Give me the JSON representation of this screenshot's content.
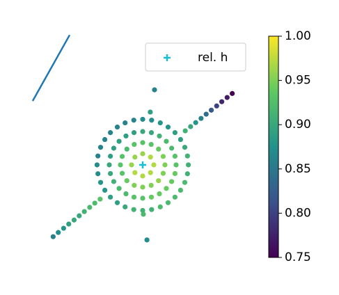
{
  "chart_data": {
    "type": "scatter",
    "xlim": [
      -5,
      5
    ],
    "ylim": [
      -4.35,
      5.85
    ],
    "colormap": "viridis",
    "clim": [
      0.75,
      1.0
    ],
    "cticks": [
      {
        "value": 1.0,
        "label": "1.00"
      },
      0.95,
      {
        "value": 0.9,
        "label": "0.90"
      },
      0.85,
      {
        "value": 0.8,
        "label": "0.80"
      },
      0.75
    ],
    "line": {
      "color": "#1f77b4",
      "x": [
        -4.94,
        -3.28
      ],
      "y": [
        2.875,
        5.84
      ]
    },
    "marker": {
      "name": "rel. h",
      "color": "#17becf",
      "x": 0,
      "y": 0
    },
    "legend": "upper right",
    "x": [
      0.5,
      0.35,
      0,
      -0.35,
      -0.5,
      -0.35,
      0,
      0.35,
      1,
      0.92,
      0.71,
      0.38,
      0,
      -0.38,
      -0.71,
      -0.92,
      -1,
      -0.92,
      -0.71,
      -0.38,
      0,
      0.38,
      0.71,
      0.92,
      1.5,
      1.45,
      1.3,
      1.06,
      0.75,
      0.39,
      0,
      -0.39,
      -0.75,
      -1.06,
      -1.3,
      -1.45,
      -1.5,
      -1.45,
      -1.3,
      -1.06,
      -0.75,
      -0.39,
      0,
      0.39,
      0.75,
      1.06,
      1.3,
      1.45,
      2.05,
      2.01,
      1.89,
      1.7,
      1.45,
      1.14,
      0.79,
      0.4,
      0,
      -0.4,
      -0.79,
      -1.14,
      -1.45,
      -1.7,
      -1.89,
      -2.01,
      -2.05,
      -2.01,
      -1.89,
      -1.7,
      -1.45,
      -1.14,
      -0.79,
      -0.4,
      0,
      0.4,
      0.79,
      1.14,
      1.45,
      1.7,
      1.89,
      2.01,
      1.91,
      2.15,
      2.38,
      2.62,
      2.85,
      3.08,
      3.32,
      3.55,
      3.79,
      4.02,
      -1.91,
      -2.15,
      -2.38,
      -2.62,
      -2.85,
      -3.08,
      -3.32,
      -3.55,
      -3.79,
      -4.02,
      0.53,
      0.34,
      0.03,
      0.19
    ],
    "values": [
      0,
      0.35,
      0.5,
      0.35,
      0,
      -0.35,
      -0.5,
      -0.35,
      0,
      0.38,
      0.71,
      0.92,
      1,
      0.92,
      0.71,
      0.38,
      0,
      -0.38,
      -0.71,
      -0.92,
      -1,
      -0.92,
      -0.71,
      -0.38,
      0,
      0.39,
      0.75,
      1.06,
      1.3,
      1.45,
      1.5,
      1.45,
      1.3,
      1.06,
      0.75,
      0.39,
      0,
      -0.39,
      -0.75,
      -1.06,
      -1.3,
      -1.45,
      -1.5,
      -1.45,
      -1.3,
      -1.06,
      -0.75,
      -0.39,
      0,
      0.4,
      0.79,
      1.14,
      1.45,
      1.7,
      1.89,
      2.01,
      2.05,
      2.01,
      1.89,
      1.7,
      1.45,
      1.14,
      0.79,
      0.4,
      0,
      -0.4,
      -0.79,
      -1.14,
      -1.45,
      -1.7,
      -1.89,
      -2.01,
      -2.05,
      -2.01,
      -1.89,
      -1.7,
      -1.45,
      -1.14,
      -0.79,
      -0.4,
      1.53,
      1.72,
      1.9,
      2.09,
      2.28,
      2.46,
      2.65,
      2.84,
      3.03,
      3.21,
      -1.54,
      -1.72,
      -1.91,
      -2.1,
      -2.29,
      -2.48,
      -2.66,
      -2.85,
      -3.04,
      -3.23,
      3.375,
      2.375,
      -2.22,
      -3.375
    ],
    "c": [
      0.97,
      0.97,
      0.96,
      0.96,
      0.96,
      0.97,
      0.97,
      0.97,
      0.95,
      0.95,
      0.94,
      0.93,
      0.93,
      0.93,
      0.92,
      0.93,
      0.93,
      0.93,
      0.94,
      0.95,
      0.95,
      0.95,
      0.96,
      0.95,
      0.93,
      0.93,
      0.92,
      0.92,
      0.91,
      0.9,
      0.9,
      0.89,
      0.89,
      0.89,
      0.89,
      0.89,
      0.9,
      0.9,
      0.91,
      0.92,
      0.92,
      0.93,
      0.93,
      0.94,
      0.94,
      0.94,
      0.94,
      0.94,
      0.91,
      0.91,
      0.9,
      0.89,
      0.89,
      0.88,
      0.88,
      0.87,
      0.87,
      0.86,
      0.86,
      0.86,
      0.86,
      0.86,
      0.86,
      0.86,
      0.87,
      0.87,
      0.88,
      0.88,
      0.89,
      0.89,
      0.9,
      0.91,
      0.91,
      0.91,
      0.92,
      0.92,
      0.92,
      0.92,
      0.92,
      0.91,
      0.91,
      0.9,
      0.88,
      0.86,
      0.84,
      0.82,
      0.8,
      0.78,
      0.77,
      0.75,
      0.93,
      0.92,
      0.92,
      0.91,
      0.9,
      0.9,
      0.89,
      0.88,
      0.87,
      0.86,
      0.86,
      0.89,
      0.92,
      0.87
    ]
  }
}
